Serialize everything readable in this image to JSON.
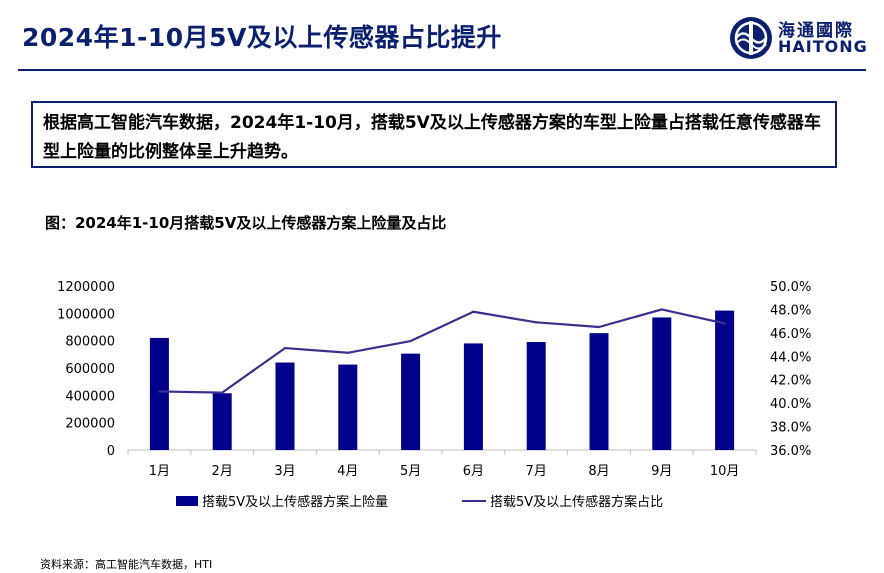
{
  "header": {
    "title": "2024年1-10月5V及以上传感器占比提升",
    "logo_cn": "海通國際",
    "logo_en": "HAITONG"
  },
  "summary": "根据高工智能汽车数据，2024年1-10月，搭载5V及以上传感器方案的车型上险量占搭载任意传感器车型上险量的比例整体呈上升趋势。",
  "figure_title": "图：2024年1-10月搭载5V及以上传感器方案上险量及占比",
  "source": "资料来源：高工智能汽车数据，HTI",
  "colors": {
    "brand": "#0a1f6e",
    "bar": "#00008b",
    "line": "#3a2f8f"
  },
  "chart_data": {
    "type": "bar",
    "categories": [
      "1月",
      "2月",
      "3月",
      "4月",
      "5月",
      "6月",
      "7月",
      "8月",
      "9月",
      "10月"
    ],
    "series": [
      {
        "name": "搭载5V及以上传感器方案上险量",
        "type": "bar",
        "axis": "left",
        "values": [
          820000,
          415000,
          640000,
          625000,
          705000,
          780000,
          790000,
          855000,
          970000,
          1020000
        ]
      },
      {
        "name": "搭载5V及以上传感器方案占比",
        "type": "line",
        "axis": "right",
        "values": [
          41.0,
          40.9,
          44.7,
          44.3,
          45.3,
          47.8,
          46.9,
          46.5,
          48.0,
          46.8
        ]
      }
    ],
    "left_axis": {
      "ylim": [
        0,
        1200000
      ],
      "ticks": [
        "0",
        "200000",
        "400000",
        "600000",
        "800000",
        "1000000",
        "1200000"
      ]
    },
    "right_axis": {
      "ylim": [
        36,
        50
      ],
      "unit": "%",
      "ticks": [
        "36.0%",
        "38.0%",
        "40.0%",
        "42.0%",
        "44.0%",
        "46.0%",
        "48.0%",
        "50.0%"
      ]
    },
    "grid": false,
    "legend": "bottom"
  }
}
